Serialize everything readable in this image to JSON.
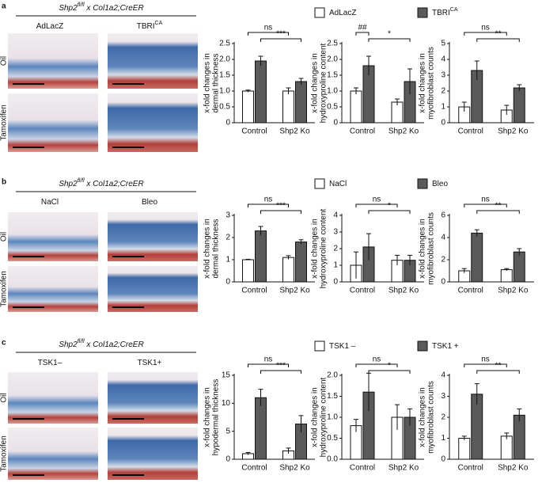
{
  "panels": [
    {
      "label": "a",
      "genotype": {
        "gene": "Shp2",
        "sup": "fl/fl",
        "rest": " x Col1a2;CreER"
      },
      "columns": [
        {
          "text": "AdLacZ"
        },
        {
          "text": "TBRI",
          "sup": "CA"
        }
      ],
      "rows": [
        "Oil",
        "Tamoxifen"
      ]
    },
    {
      "label": "b",
      "genotype": {
        "gene": "Shp2",
        "sup": "fl/fl",
        "rest": " x Col1a2;CreER"
      },
      "columns": [
        {
          "text": "NaCl"
        },
        {
          "text": "Bleo"
        }
      ],
      "rows": [
        "Oil",
        "Tamoxifen"
      ]
    },
    {
      "label": "c",
      "genotype": {
        "gene": "Shp2",
        "sup": "fl/fl",
        "rest": " x Col1a2;CreER"
      },
      "columns": [
        {
          "text": "TSK1–"
        },
        {
          "text": "TSK1+"
        }
      ],
      "rows": [
        "Oil",
        "Tamoxifen"
      ]
    }
  ],
  "chart_data": [
    {
      "type": "bar",
      "ylabel": [
        "x-fold changes in",
        "dermal thickness"
      ],
      "categories": [
        "Control",
        "Shp2 Ko"
      ],
      "series": [
        {
          "name": "AdLacZ",
          "color": "#ffffff",
          "values": [
            1.0,
            1.0
          ],
          "errors": [
            0.03,
            0.1
          ]
        },
        {
          "name": "TBRI",
          "name_sup": "CA",
          "color": "#5a5a5a",
          "values": [
            1.95,
            1.3
          ],
          "errors": [
            0.15,
            0.1
          ]
        }
      ],
      "ylim": [
        0,
        2.5
      ],
      "yticks": [
        0,
        0.5,
        {
          "value": 1,
          "label": "1.0"
        },
        1.5,
        {
          "value": 2,
          "label": "2.0"
        },
        2.5
      ],
      "annotations": [
        "ns",
        "***"
      ]
    },
    {
      "type": "bar",
      "ylabel": [
        "x-fold changes in",
        "hydroxyproline content"
      ],
      "categories": [
        "Control",
        "Shp2 Ko"
      ],
      "series": [
        {
          "name": "AdLacZ",
          "color": "#ffffff",
          "values": [
            1.0,
            0.65
          ],
          "errors": [
            0.1,
            0.1
          ]
        },
        {
          "name": "TBRI",
          "name_sup": "CA",
          "color": "#5a5a5a",
          "values": [
            1.8,
            1.3
          ],
          "errors": [
            0.3,
            0.4
          ]
        }
      ],
      "ylim": [
        0,
        2.5
      ],
      "yticks": [
        0,
        0.5,
        {
          "value": 1,
          "label": "1.0"
        },
        1.5,
        {
          "value": 2,
          "label": "2.0"
        },
        2.5
      ],
      "annotations": [
        "##",
        "*"
      ]
    },
    {
      "type": "bar",
      "ylabel": [
        "x-fold changes in",
        "myofibroblast counts"
      ],
      "categories": [
        "Control",
        "Shp2 Ko"
      ],
      "series": [
        {
          "name": "AdLacZ",
          "color": "#ffffff",
          "values": [
            1.0,
            0.8
          ],
          "errors": [
            0.3,
            0.3
          ]
        },
        {
          "name": "TBRI",
          "name_sup": "CA",
          "color": "#5a5a5a",
          "values": [
            3.3,
            2.2
          ],
          "errors": [
            0.6,
            0.2
          ]
        }
      ],
      "ylim": [
        0,
        5
      ],
      "yticks": [
        0,
        1,
        2,
        3,
        4,
        5
      ],
      "annotations": [
        "ns",
        "**"
      ]
    },
    {
      "type": "bar",
      "ylabel": [
        "x-fold changes in",
        "dermal thickness"
      ],
      "categories": [
        "Control",
        "Shp2 Ko"
      ],
      "series": [
        {
          "name": "NaCl",
          "color": "#ffffff",
          "values": [
            1.0,
            1.1
          ],
          "errors": [
            0.02,
            0.08
          ]
        },
        {
          "name": "Bleo",
          "color": "#5a5a5a",
          "values": [
            2.3,
            1.8
          ],
          "errors": [
            0.2,
            0.1
          ]
        }
      ],
      "ylim": [
        0,
        3
      ],
      "yticks": [
        0,
        1,
        2,
        3
      ],
      "annotations": [
        "ns",
        "***"
      ]
    },
    {
      "type": "bar",
      "ylabel": [
        "x-fold changes in",
        "hydroxyproline content"
      ],
      "categories": [
        "Control",
        "Shp2 Ko"
      ],
      "series": [
        {
          "name": "NaCl",
          "color": "#ffffff",
          "values": [
            1.0,
            1.3
          ],
          "errors": [
            0.8,
            0.3
          ]
        },
        {
          "name": "Bleo",
          "color": "#5a5a5a",
          "values": [
            2.1,
            1.3
          ],
          "errors": [
            0.8,
            0.3
          ]
        }
      ],
      "ylim": [
        0,
        4
      ],
      "yticks": [
        0,
        1,
        2,
        3,
        4
      ],
      "annotations": [
        "ns",
        "*"
      ]
    },
    {
      "type": "bar",
      "ylabel": [
        "x-fold changes in",
        "myofibroblast counts"
      ],
      "categories": [
        "Control",
        "Shp2 Ko"
      ],
      "series": [
        {
          "name": "NaCl",
          "color": "#ffffff",
          "values": [
            1.0,
            1.1
          ],
          "errors": [
            0.2,
            0.1
          ]
        },
        {
          "name": "Bleo",
          "color": "#5a5a5a",
          "values": [
            4.4,
            2.7
          ],
          "errors": [
            0.3,
            0.3
          ]
        }
      ],
      "ylim": [
        0,
        6
      ],
      "yticks": [
        0,
        2,
        4,
        6
      ],
      "annotations": [
        "ns",
        "**"
      ]
    },
    {
      "type": "bar",
      "ylabel": [
        "x-fold changes in",
        "hypodermal thickness"
      ],
      "categories": [
        "Control",
        "Shp2 Ko"
      ],
      "series": [
        {
          "name": "TSK1 –",
          "color": "#ffffff",
          "values": [
            1.0,
            1.5
          ],
          "errors": [
            0.2,
            0.5
          ]
        },
        {
          "name": "TSK1 +",
          "color": "#5a5a5a",
          "values": [
            11,
            6.3
          ],
          "errors": [
            1.5,
            1.5
          ]
        }
      ],
      "ylim": [
        0,
        15
      ],
      "yticks": [
        0,
        5,
        10,
        15
      ],
      "annotations": [
        "ns",
        "***"
      ]
    },
    {
      "type": "bar",
      "ylabel": [
        "x-fold changes in",
        "hydroxyproline content"
      ],
      "categories": [
        "Control",
        "Shp2 Ko"
      ],
      "series": [
        {
          "name": "TSK1 –",
          "color": "#ffffff",
          "values": [
            0.8,
            1.0
          ],
          "errors": [
            0.15,
            0.3
          ]
        },
        {
          "name": "TSK1 +",
          "color": "#5a5a5a",
          "values": [
            1.6,
            1.0
          ],
          "errors": [
            0.45,
            0.2
          ]
        }
      ],
      "ylim": [
        0,
        2
      ],
      "yticks": [
        {
          "value": 0,
          "label": "0.0"
        },
        0.5,
        {
          "value": 1,
          "label": "1.0"
        },
        1.5,
        {
          "value": 2,
          "label": "2.0"
        }
      ],
      "annotations": [
        "ns",
        "*"
      ]
    },
    {
      "type": "bar",
      "ylabel": [
        "x-fold changes in",
        "myofibroblast counts"
      ],
      "categories": [
        "Control",
        "Shp2 Ko"
      ],
      "series": [
        {
          "name": "TSK1 –",
          "color": "#ffffff",
          "values": [
            1.0,
            1.1
          ],
          "errors": [
            0.1,
            0.15
          ]
        },
        {
          "name": "TSK1 +",
          "color": "#5a5a5a",
          "values": [
            3.1,
            2.1
          ],
          "errors": [
            0.5,
            0.3
          ]
        }
      ],
      "ylim": [
        0,
        4
      ],
      "yticks": [
        0,
        1,
        2,
        3,
        4
      ],
      "annotations": [
        "ns",
        "**"
      ]
    }
  ]
}
